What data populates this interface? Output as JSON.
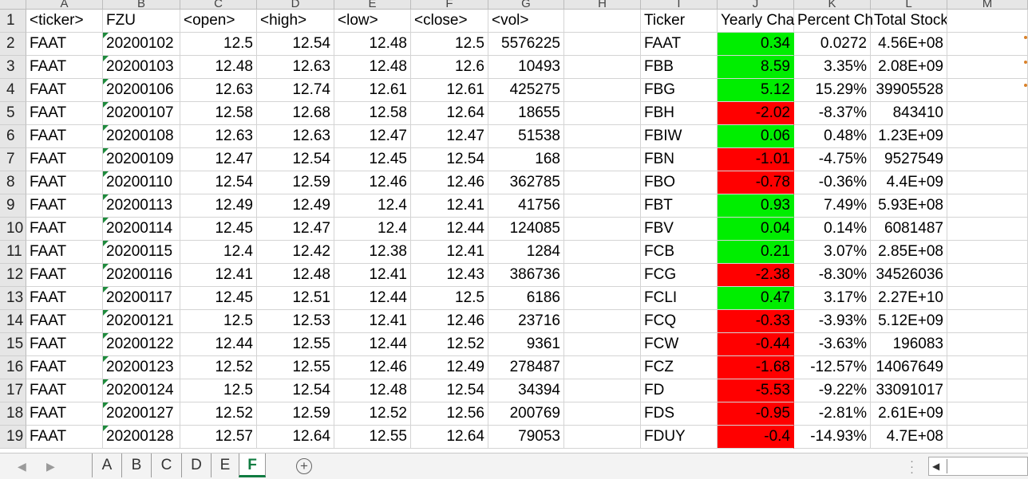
{
  "columns": [
    "A",
    "B",
    "C",
    "D",
    "E",
    "F",
    "G",
    "H",
    "I",
    "J",
    "K",
    "L",
    "M"
  ],
  "row_numbers": [
    "1",
    "2",
    "3",
    "4",
    "5",
    "6",
    "7",
    "8",
    "9",
    "10",
    "11",
    "12",
    "13",
    "14",
    "15",
    "16",
    "17",
    "18",
    "19"
  ],
  "header_row": [
    "<ticker>",
    "FZU",
    "<open>",
    "<high>",
    "<low>",
    "<close>",
    "<vol>",
    "",
    "Ticker",
    "Yearly Cha",
    "Percent Ch",
    "Total Stock Volume",
    ""
  ],
  "raw_rows": [
    [
      "FAAT",
      "20200102",
      "12.5",
      "12.54",
      "12.48",
      "12.5",
      "5576225"
    ],
    [
      "FAAT",
      "20200103",
      "12.48",
      "12.63",
      "12.48",
      "12.6",
      "10493"
    ],
    [
      "FAAT",
      "20200106",
      "12.63",
      "12.74",
      "12.61",
      "12.61",
      "425275"
    ],
    [
      "FAAT",
      "20200107",
      "12.58",
      "12.68",
      "12.58",
      "12.64",
      "18655"
    ],
    [
      "FAAT",
      "20200108",
      "12.63",
      "12.63",
      "12.47",
      "12.47",
      "51538"
    ],
    [
      "FAAT",
      "20200109",
      "12.47",
      "12.54",
      "12.45",
      "12.54",
      "168"
    ],
    [
      "FAAT",
      "20200110",
      "12.54",
      "12.59",
      "12.46",
      "12.46",
      "362785"
    ],
    [
      "FAAT",
      "20200113",
      "12.49",
      "12.49",
      "12.4",
      "12.41",
      "41756"
    ],
    [
      "FAAT",
      "20200114",
      "12.45",
      "12.47",
      "12.4",
      "12.44",
      "124085"
    ],
    [
      "FAAT",
      "20200115",
      "12.4",
      "12.42",
      "12.38",
      "12.41",
      "1284"
    ],
    [
      "FAAT",
      "20200116",
      "12.41",
      "12.48",
      "12.41",
      "12.43",
      "386736"
    ],
    [
      "FAAT",
      "20200117",
      "12.45",
      "12.51",
      "12.44",
      "12.5",
      "6186"
    ],
    [
      "FAAT",
      "20200121",
      "12.5",
      "12.53",
      "12.41",
      "12.46",
      "23716"
    ],
    [
      "FAAT",
      "20200122",
      "12.44",
      "12.55",
      "12.44",
      "12.52",
      "9361"
    ],
    [
      "FAAT",
      "20200123",
      "12.52",
      "12.55",
      "12.46",
      "12.49",
      "278487"
    ],
    [
      "FAAT",
      "20200124",
      "12.5",
      "12.54",
      "12.48",
      "12.54",
      "34394"
    ],
    [
      "FAAT",
      "20200127",
      "12.52",
      "12.59",
      "12.52",
      "12.56",
      "200769"
    ],
    [
      "FAAT",
      "20200128",
      "12.57",
      "12.64",
      "12.55",
      "12.64",
      "79053"
    ]
  ],
  "summary_rows": [
    {
      "ticker": "FAAT",
      "yearly": "0.34",
      "percent": "0.0272",
      "volume": "4.56E+08",
      "status": "positive"
    },
    {
      "ticker": "FBB",
      "yearly": "8.59",
      "percent": "3.35%",
      "volume": "2.08E+09",
      "status": "positive"
    },
    {
      "ticker": "FBG",
      "yearly": "5.12",
      "percent": "15.29%",
      "volume": "39905528",
      "status": "positive"
    },
    {
      "ticker": "FBH",
      "yearly": "-2.02",
      "percent": "-8.37%",
      "volume": "843410",
      "status": "negative"
    },
    {
      "ticker": "FBIW",
      "yearly": "0.06",
      "percent": "0.48%",
      "volume": "1.23E+09",
      "status": "positive"
    },
    {
      "ticker": "FBN",
      "yearly": "-1.01",
      "percent": "-4.75%",
      "volume": "9527549",
      "status": "negative"
    },
    {
      "ticker": "FBO",
      "yearly": "-0.78",
      "percent": "-0.36%",
      "volume": "4.4E+09",
      "status": "negative"
    },
    {
      "ticker": "FBT",
      "yearly": "0.93",
      "percent": "7.49%",
      "volume": "5.93E+08",
      "status": "positive"
    },
    {
      "ticker": "FBV",
      "yearly": "0.04",
      "percent": "0.14%",
      "volume": "6081487",
      "status": "positive"
    },
    {
      "ticker": "FCB",
      "yearly": "0.21",
      "percent": "3.07%",
      "volume": "2.85E+08",
      "status": "positive"
    },
    {
      "ticker": "FCG",
      "yearly": "-2.38",
      "percent": "-8.30%",
      "volume": "34526036",
      "status": "negative"
    },
    {
      "ticker": "FCLI",
      "yearly": "0.47",
      "percent": "3.17%",
      "volume": "2.27E+10",
      "status": "positive"
    },
    {
      "ticker": "FCQ",
      "yearly": "-0.33",
      "percent": "-3.93%",
      "volume": "5.12E+09",
      "status": "negative"
    },
    {
      "ticker": "FCW",
      "yearly": "-0.44",
      "percent": "-3.63%",
      "volume": "196083",
      "status": "negative"
    },
    {
      "ticker": "FCZ",
      "yearly": "-1.68",
      "percent": "-12.57%",
      "volume": "14067649",
      "status": "negative"
    },
    {
      "ticker": "FD",
      "yearly": "-5.53",
      "percent": "-9.22%",
      "volume": "33091017",
      "status": "negative"
    },
    {
      "ticker": "FDS",
      "yearly": "-0.95",
      "percent": "-2.81%",
      "volume": "2.61E+09",
      "status": "negative"
    },
    {
      "ticker": "FDUY",
      "yearly": "-0.4",
      "percent": "-14.93%",
      "volume": "4.7E+08",
      "status": "negative"
    }
  ],
  "colors": {
    "positive": "#00ee00",
    "negative": "#ff0000",
    "active_tab": "#107c41",
    "header_bg": "#e6e6e6"
  },
  "sheet_tabs": [
    "A",
    "B",
    "C",
    "D",
    "E",
    "F"
  ],
  "active_sheet": "F",
  "icons": {
    "add_sheet": "plus-circle-icon",
    "prev_sheet": "chevron-left-icon",
    "next_sheet": "chevron-right-icon",
    "scroll_left": "triangle-left-icon",
    "options": "vertical-dots-icon"
  }
}
